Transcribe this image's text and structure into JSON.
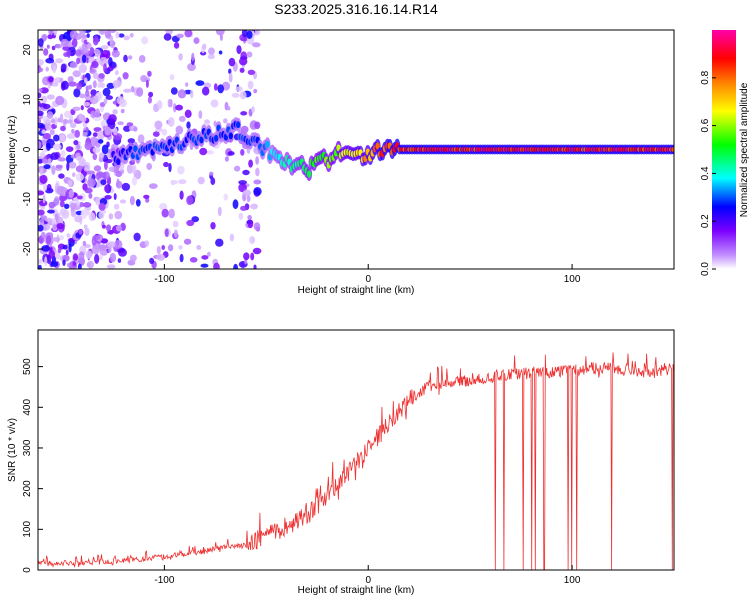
{
  "chart_data": [
    {
      "type": "heatmap",
      "title": "S233.2025.316.16.14.R14",
      "xlabel": "Height of straight line (km)",
      "ylabel": "Frequency (Hz)",
      "xlim": [
        -162,
        150
      ],
      "ylim": [
        -24,
        24
      ],
      "xticks": [
        -100,
        0,
        100
      ],
      "yticks": [
        -20,
        -10,
        0,
        10,
        20
      ],
      "grid": false,
      "colorbar": {
        "label": "Normalized spectral amplitude",
        "range": [
          0,
          1
        ],
        "ticks": [
          0.0,
          0.2,
          0.4,
          0.6,
          0.8
        ],
        "colors": [
          "#ffffff",
          "#c08cff",
          "#7a00ff",
          "#0000ff",
          "#00ffff",
          "#00ff00",
          "#ffff00",
          "#ff8000",
          "#ff0000",
          "#ff00aa"
        ]
      },
      "ridge": {
        "heights": [
          -125,
          -115,
          -105,
          -95,
          -85,
          -75,
          -65,
          -60,
          -55,
          -50,
          -45,
          -40,
          -35,
          -30,
          -25,
          -20,
          -15,
          -10,
          -5,
          0,
          5,
          10,
          15,
          20,
          40,
          60,
          80,
          100,
          120,
          140,
          150
        ],
        "frequencies": [
          -2,
          -1,
          0,
          1,
          2,
          3,
          4,
          3,
          1,
          0,
          -1,
          -2,
          -3.5,
          -4,
          -3,
          -2,
          -1,
          0,
          -1,
          -1,
          0,
          0,
          0,
          0,
          0,
          0,
          0,
          0,
          0,
          0,
          0
        ],
        "amplitudes": [
          0.25,
          0.3,
          0.3,
          0.3,
          0.3,
          0.3,
          0.3,
          0.3,
          0.3,
          0.35,
          0.4,
          0.45,
          0.5,
          0.55,
          0.6,
          0.6,
          0.65,
          0.7,
          0.75,
          0.8,
          0.85,
          0.9,
          0.95,
          0.95,
          0.95,
          0.95,
          0.95,
          0.95,
          0.95,
          0.95,
          0.95
        ]
      }
    },
    {
      "type": "line",
      "xlabel": "Height of straight line (km)",
      "ylabel": "SNR (10 * v/v)",
      "xlim": [
        -162,
        150
      ],
      "ylim": [
        0,
        590
      ],
      "xticks": [
        -100,
        0,
        100
      ],
      "yticks": [
        0,
        100,
        200,
        300,
        400,
        500
      ],
      "grid": false,
      "color": "#ee3030",
      "series": [
        {
          "x": [
            -162,
            -150,
            -140,
            -130,
            -120,
            -110,
            -100,
            -90,
            -80,
            -70,
            -60,
            -55,
            -50,
            -45,
            -40,
            -35,
            -30,
            -25,
            -20,
            -15,
            -10,
            -5,
            0,
            5,
            10,
            15,
            20,
            25,
            30,
            40,
            50,
            60,
            70,
            80,
            90,
            100,
            110,
            120,
            130,
            140,
            150
          ],
          "values": [
            15,
            15,
            15,
            18,
            20,
            25,
            30,
            38,
            45,
            55,
            60,
            65,
            75,
            85,
            100,
            110,
            130,
            150,
            175,
            200,
            230,
            260,
            290,
            320,
            350,
            380,
            410,
            430,
            445,
            455,
            460,
            470,
            475,
            478,
            480,
            485,
            490,
            490,
            485,
            480,
            490
          ]
        }
      ]
    }
  ]
}
